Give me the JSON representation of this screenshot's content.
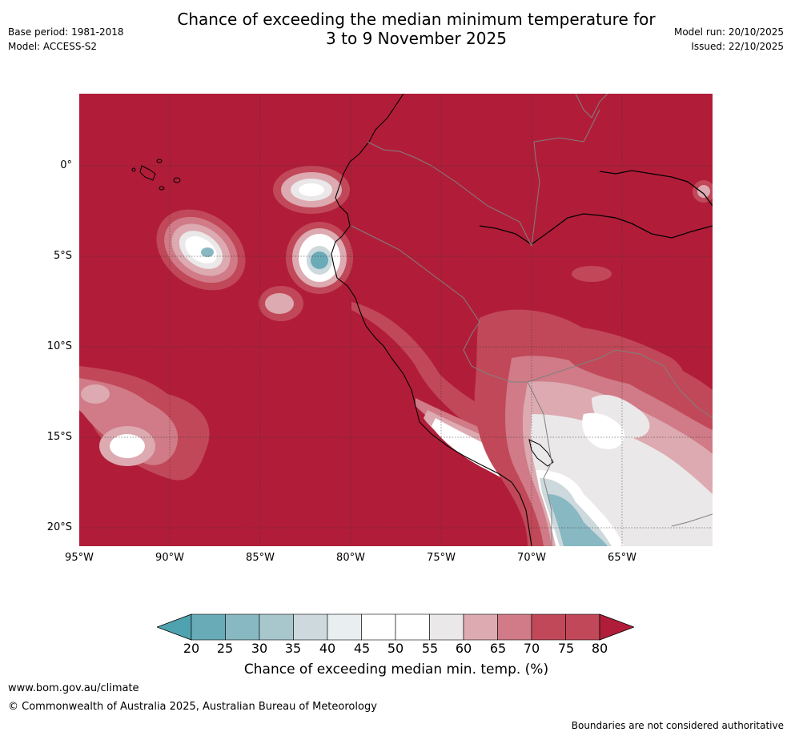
{
  "header": {
    "title_line1": "Chance of exceeding the median minimum temperature for",
    "title_line2": "3 to 9 November 2025",
    "base_period": "Base period: 1981-2018",
    "model": "Model: ACCESS-S2",
    "model_run": "Model run: 20/10/2025",
    "issued": "Issued: 22/10/2025"
  },
  "map": {
    "lon_labels": [
      "95°W",
      "90°W",
      "85°W",
      "80°W",
      "75°W",
      "70°W",
      "65°W"
    ],
    "lat_labels": [
      "0°",
      "5°S",
      "10°S",
      "15°S",
      "20°S"
    ],
    "background_category": "80+",
    "colors": {
      "c80": "#b11d39",
      "c75": "#c14858",
      "c70": "#d07b87",
      "c65": "#dcaab0",
      "c60": "#ebe8e9",
      "c50": "#ffffff",
      "c40": "#e9eef0",
      "c35": "#cdd9dc",
      "c30": "#a8c7cd",
      "c25": "#88b8c2",
      "c20": "#6aabb8"
    }
  },
  "colorbar": {
    "ticks": [
      "20",
      "25",
      "30",
      "35",
      "40",
      "45",
      "50",
      "55",
      "60",
      "65",
      "70",
      "75",
      "80"
    ],
    "segment_colors": [
      "#6aabb8",
      "#88b8c2",
      "#a8c7cd",
      "#cdd9dc",
      "#e9eef0",
      "#ffffff",
      "#ffffff",
      "#ebe8e9",
      "#dcaab0",
      "#d07b87",
      "#c14858",
      "#c14858",
      "#b11d39"
    ],
    "low_color": "#4fa3b0",
    "high_color": "#b11d39",
    "label": "Chance of exceeding median min. temp. (%)"
  },
  "footer": {
    "url": "www.bom.gov.au/climate",
    "copyright": "© Commonwealth of Australia 2025, Australian Bureau of Meteorology",
    "disclaimer": "Boundaries are not considered authoritative"
  }
}
